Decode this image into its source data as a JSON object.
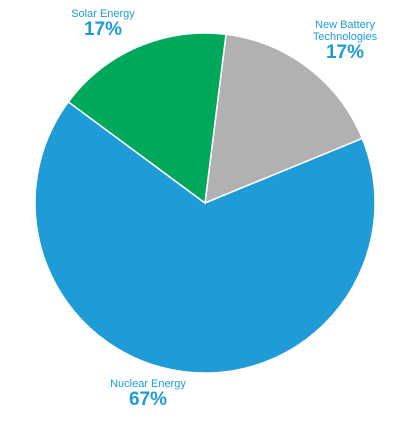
{
  "chart_data": {
    "type": "pie",
    "categories": [
      "New Battery Technologies",
      "Nuclear Energy",
      "Solar Energy"
    ],
    "values": [
      17,
      67,
      17
    ],
    "value_labels": [
      "17%",
      "67%",
      "17%"
    ],
    "colors": [
      "#b1b1b1",
      "#1f9bd7",
      "#00a85c"
    ]
  }
}
